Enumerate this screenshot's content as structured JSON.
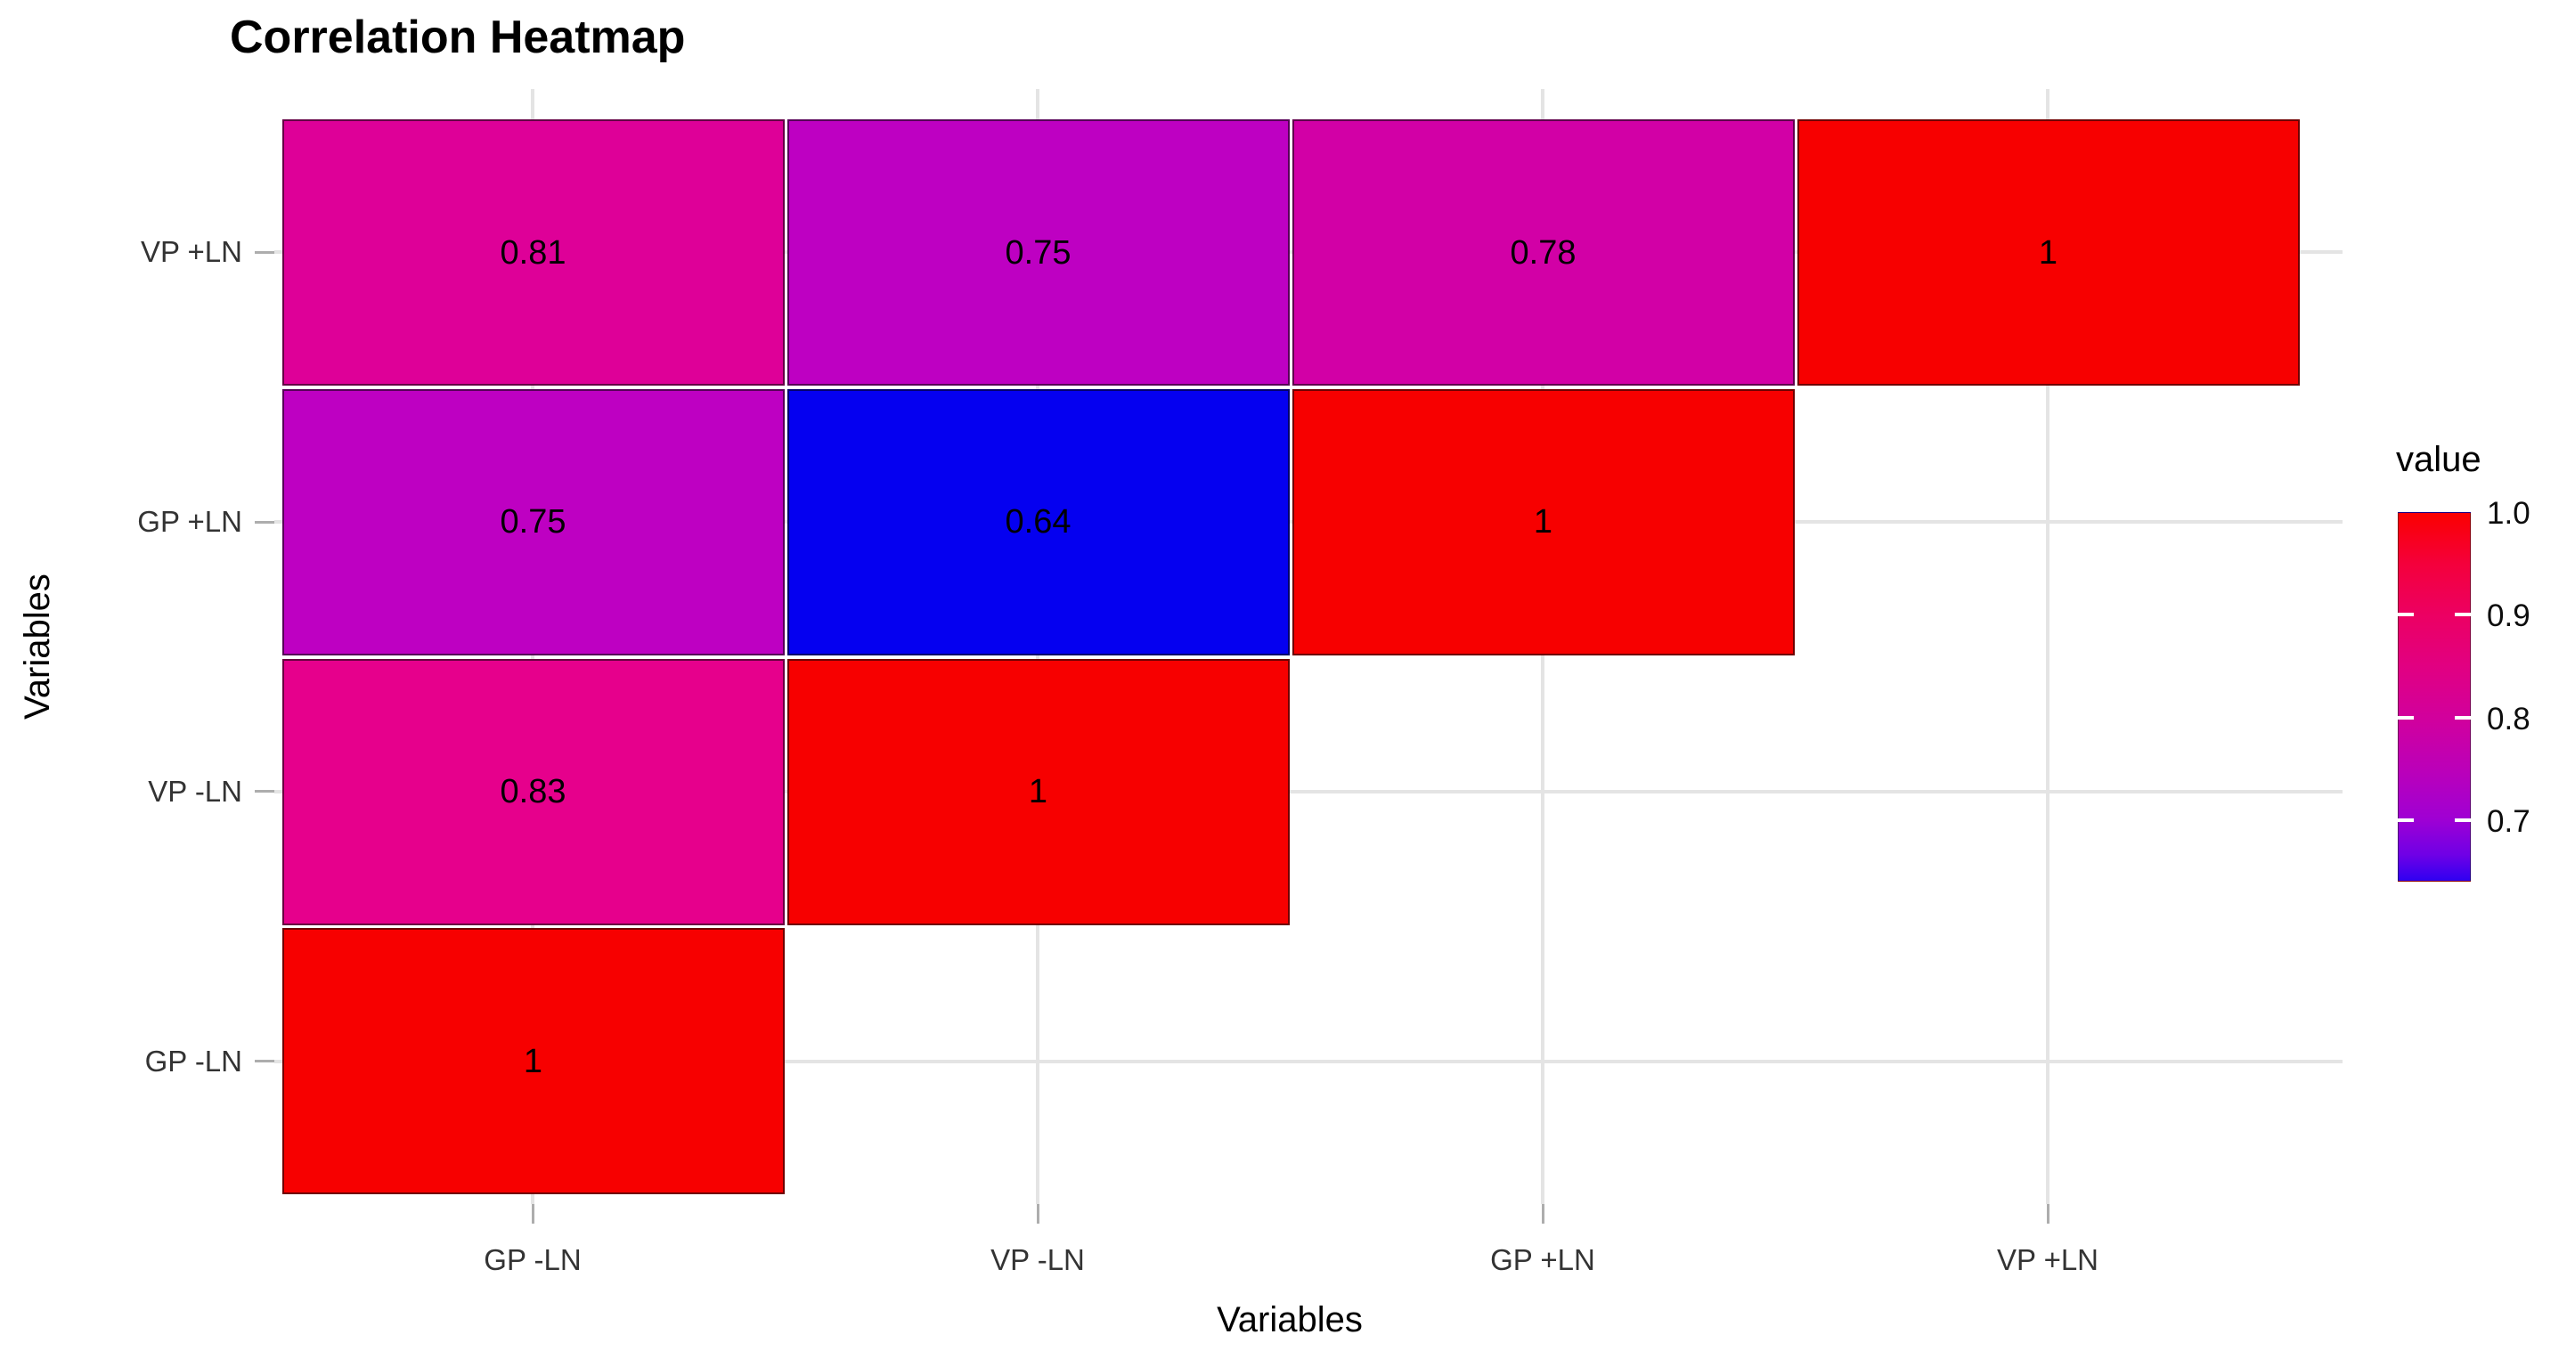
{
  "chart_data": {
    "type": "heatmap",
    "title": "Correlation Heatmap",
    "xlabel": "Variables",
    "ylabel": "Variables",
    "x_categories": [
      "GP -LN",
      "VP -LN",
      "GP +LN",
      "VP +LN"
    ],
    "y_categories_top_to_bottom": [
      "VP +LN",
      "GP +LN",
      "VP -LN",
      "GP -LN"
    ],
    "grid": true,
    "legend_position": "right",
    "cells": [
      {
        "x": "GP -LN",
        "y": "VP +LN",
        "value": "0.81",
        "color": "#DE0098"
      },
      {
        "x": "VP -LN",
        "y": "VP +LN",
        "value": "0.75",
        "color": "#BE00C2"
      },
      {
        "x": "GP +LN",
        "y": "VP +LN",
        "value": "0.78",
        "color": "#D200A6"
      },
      {
        "x": "VP +LN",
        "y": "VP +LN",
        "value": "1",
        "color": "#F70000"
      },
      {
        "x": "GP -LN",
        "y": "GP +LN",
        "value": "0.75",
        "color": "#BE00C2"
      },
      {
        "x": "VP -LN",
        "y": "GP +LN",
        "value": "0.64",
        "color": "#0500F0"
      },
      {
        "x": "GP +LN",
        "y": "GP +LN",
        "value": "1",
        "color": "#F70000"
      },
      {
        "x": "GP -LN",
        "y": "VP -LN",
        "value": "0.83",
        "color": "#E6008C"
      },
      {
        "x": "VP -LN",
        "y": "VP -LN",
        "value": "1",
        "color": "#F70000"
      },
      {
        "x": "GP -LN",
        "y": "GP -LN",
        "value": "1",
        "color": "#F70000"
      }
    ],
    "legend": {
      "title": "value",
      "range": [
        0.64,
        1.0
      ],
      "tick_labels": [
        "1.0",
        "0.9",
        "0.8",
        "0.7"
      ],
      "tick_values": [
        1.0,
        0.9,
        0.8,
        0.7
      ],
      "gradient_top_to_bottom": [
        {
          "pos": 0.0,
          "color": "#FB0000"
        },
        {
          "pos": 0.14,
          "color": "#F4003C"
        },
        {
          "pos": 0.28,
          "color": "#EC0063"
        },
        {
          "pos": 0.42,
          "color": "#E10082"
        },
        {
          "pos": 0.56,
          "color": "#D1009D"
        },
        {
          "pos": 0.7,
          "color": "#BB00B9"
        },
        {
          "pos": 0.83,
          "color": "#A000D3"
        },
        {
          "pos": 0.93,
          "color": "#6F00E6"
        },
        {
          "pos": 1.0,
          "color": "#2F00F1"
        }
      ]
    },
    "style": {
      "gridline_color": "#E4E4E4",
      "tick_color": "#ADADAD",
      "tick_label_color": "#333333",
      "cell_border_color": "rgba(0,0,0,0.55)",
      "cell_text_color": "#000000",
      "background": "#ffffff"
    }
  }
}
